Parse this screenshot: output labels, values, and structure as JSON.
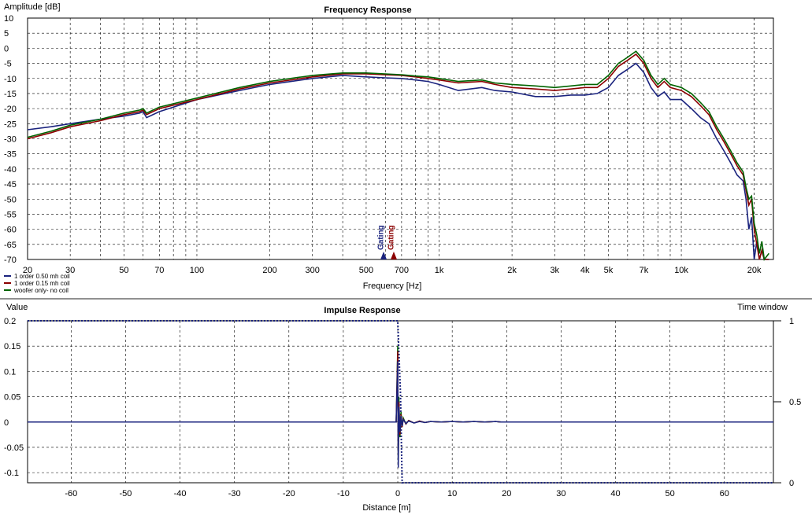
{
  "chart_data": [
    {
      "type": "line",
      "title": "Frequency Response",
      "ylabel": "Amplitude [dB]",
      "xlabel": "Frequency [Hz]",
      "x_scale": "log",
      "xlim": [
        20,
        24000
      ],
      "ylim": [
        -70,
        10
      ],
      "grid": true,
      "legend_placement": "bottom-left",
      "y_ticks": [
        "10",
        "5",
        "0",
        "-5",
        "-10",
        "-15",
        "-20",
        "-25",
        "-30",
        "-35",
        "-40",
        "-45",
        "-50",
        "-55",
        "-60",
        "-65",
        "-70"
      ],
      "x_ticks": [
        {
          "v": 20,
          "label": "20"
        },
        {
          "v": 30,
          "label": "30"
        },
        {
          "v": 50,
          "label": "50"
        },
        {
          "v": 70,
          "label": "70"
        },
        {
          "v": 100,
          "label": "100"
        },
        {
          "v": 200,
          "label": "200"
        },
        {
          "v": 300,
          "label": "300"
        },
        {
          "v": 500,
          "label": "500"
        },
        {
          "v": 700,
          "label": "700"
        },
        {
          "v": 1000,
          "label": "1k"
        },
        {
          "v": 2000,
          "label": "2k"
        },
        {
          "v": 3000,
          "label": "3k"
        },
        {
          "v": 4000,
          "label": "4k"
        },
        {
          "v": 5000,
          "label": "5k"
        },
        {
          "v": 7000,
          "label": "7k"
        },
        {
          "v": 10000,
          "label": "10k"
        },
        {
          "v": 20000,
          "label": "20k"
        }
      ],
      "markers": [
        {
          "label": "Gating",
          "x": 590,
          "color": "#1a237e"
        },
        {
          "label": "Gating",
          "x": 650,
          "color": "#8b0000"
        }
      ],
      "series": [
        {
          "name": "1 order 0.50 mh coil",
          "color": "#1a237e",
          "x": [
            20,
            25,
            30,
            40,
            50,
            58,
            60,
            62,
            70,
            100,
            150,
            200,
            300,
            400,
            500,
            600,
            700,
            800,
            900,
            1000,
            1200,
            1500,
            1700,
            2000,
            2500,
            3000,
            3500,
            4000,
            4500,
            5000,
            5500,
            6000,
            6500,
            7000,
            7500,
            8000,
            8500,
            9000,
            10000,
            11000,
            12000,
            13000,
            14000,
            15000,
            16000,
            17000,
            18000,
            18500,
            19000,
            19500,
            20000,
            20500,
            21000,
            21500,
            22000,
            23000
          ],
          "y": [
            -27,
            -26,
            -25,
            -23.5,
            -22.5,
            -21.5,
            -21,
            -23,
            -21,
            -17,
            -14,
            -12,
            -10,
            -9,
            -9.5,
            -9.8,
            -10,
            -10.5,
            -11,
            -12,
            -14,
            -13,
            -14,
            -14.5,
            -16,
            -16,
            -15.5,
            -15.5,
            -15,
            -13,
            -9,
            -7,
            -5,
            -8,
            -13,
            -16,
            -14.5,
            -17,
            -17,
            -20,
            -23,
            -25,
            -30,
            -34,
            -38,
            -42,
            -44,
            -50,
            -60,
            -56,
            -70,
            -64,
            -70,
            -67,
            -70,
            -70
          ]
        },
        {
          "name": "1 order 0.15 mh coil",
          "color": "#8b0000",
          "x": [
            20,
            25,
            30,
            40,
            50,
            58,
            60,
            62,
            70,
            100,
            150,
            200,
            300,
            400,
            500,
            600,
            700,
            800,
            900,
            1000,
            1200,
            1500,
            1700,
            2000,
            2500,
            3000,
            3500,
            4000,
            4500,
            5000,
            5500,
            6000,
            6500,
            7000,
            7500,
            8000,
            8500,
            9000,
            10000,
            11000,
            12000,
            13000,
            14000,
            15000,
            16000,
            17000,
            18000,
            18500,
            19000,
            19500,
            20000,
            20500,
            21000,
            21500,
            22000,
            23000
          ],
          "y": [
            -30,
            -28,
            -26,
            -24,
            -22,
            -21,
            -20.5,
            -22,
            -20,
            -17,
            -13.5,
            -11.5,
            -9.5,
            -8.5,
            -8.5,
            -8.8,
            -9,
            -9.5,
            -10,
            -10.5,
            -11.5,
            -11,
            -12,
            -13,
            -13.5,
            -14,
            -13.5,
            -13,
            -13,
            -10,
            -6,
            -4,
            -2,
            -5,
            -10,
            -13,
            -11,
            -13,
            -14,
            -16,
            -19,
            -22,
            -27,
            -31,
            -35,
            -39,
            -42,
            -47,
            -52,
            -50,
            -60,
            -65,
            -70,
            -67,
            -70,
            -70
          ]
        },
        {
          "name": "woofer only- no coil",
          "color": "#006400",
          "x": [
            20,
            25,
            30,
            40,
            50,
            58,
            60,
            62,
            70,
            100,
            150,
            200,
            300,
            400,
            500,
            600,
            700,
            800,
            900,
            1000,
            1200,
            1500,
            1700,
            2000,
            2500,
            3000,
            3500,
            4000,
            4500,
            5000,
            5500,
            6000,
            6500,
            7000,
            7500,
            8000,
            8500,
            9000,
            10000,
            11000,
            12000,
            13000,
            14000,
            15000,
            16000,
            17000,
            18000,
            18500,
            19000,
            19500,
            20000,
            20500,
            21000,
            21500,
            22000,
            23000
          ],
          "y": [
            -29.5,
            -27.5,
            -25.5,
            -23.5,
            -21.5,
            -20.5,
            -20,
            -21.5,
            -19.5,
            -16.5,
            -13,
            -11,
            -9,
            -8.2,
            -8.2,
            -8.5,
            -8.8,
            -9.2,
            -9.5,
            -10,
            -11,
            -10.5,
            -11.5,
            -12,
            -12.5,
            -13,
            -12.5,
            -12,
            -12,
            -9,
            -5,
            -3,
            -1,
            -4,
            -9,
            -12,
            -10,
            -12,
            -13,
            -15,
            -18,
            -21,
            -26,
            -30,
            -34,
            -38,
            -41,
            -46,
            -50,
            -49,
            -58,
            -62,
            -68,
            -64,
            -70,
            -68
          ]
        }
      ]
    },
    {
      "type": "line",
      "title": "Impulse Response",
      "ylabel": "Value",
      "y2label": "Time window",
      "xlabel": "Distance [m]",
      "xlim": [
        -68,
        69
      ],
      "ylim": [
        -0.12,
        0.2
      ],
      "y2lim": [
        0,
        1
      ],
      "grid": true,
      "y_ticks": [
        "0.2",
        "0.15",
        "0.1",
        "0.05",
        "0",
        "-0.05",
        "-0.1"
      ],
      "y2_ticks": [
        "1",
        "0.5",
        "0"
      ],
      "x_ticks": [
        "-60",
        "-50",
        "-40",
        "-30",
        "-20",
        "-10",
        "0",
        "10",
        "20",
        "30",
        "40",
        "50",
        "60"
      ],
      "time_window": {
        "x": [
          -68,
          0,
          0.5,
          0.8,
          69
        ],
        "y": [
          1,
          1,
          0.55,
          0,
          0
        ]
      },
      "series": [
        {
          "name": "woofer only- no coil",
          "color": "#006400",
          "x": [
            -68,
            -0.3,
            0,
            0.1,
            0.2,
            0.4,
            0.6,
            0.8,
            1,
            1.5,
            2,
            3,
            4,
            5,
            6,
            8,
            10,
            12,
            14,
            16,
            18,
            19,
            69
          ],
          "y": [
            0,
            0,
            0.15,
            -0.08,
            0.05,
            -0.03,
            0.02,
            -0.01,
            0.008,
            -0.004,
            0.003,
            -0.002,
            0.002,
            -0.001,
            0.001,
            0,
            0.001,
            0,
            0.001,
            0,
            0.001,
            0,
            0
          ]
        },
        {
          "name": "1 order 0.15 mh coil",
          "color": "#8b0000",
          "x": [
            -68,
            -0.3,
            0,
            0.1,
            0.2,
            0.4,
            0.6,
            0.8,
            1,
            1.5,
            2,
            3,
            4,
            5,
            6,
            8,
            10,
            12,
            14,
            16,
            18,
            19,
            69
          ],
          "y": [
            0,
            0,
            0.14,
            -0.07,
            0.04,
            -0.025,
            0.015,
            -0.01,
            0.006,
            -0.004,
            0.003,
            -0.002,
            0.002,
            -0.001,
            0.001,
            0,
            0.001,
            0,
            0.001,
            0,
            0.001,
            0,
            0
          ]
        },
        {
          "name": "1 order 0.50 mh coil",
          "color": "#1a237e",
          "x": [
            -68,
            -0.3,
            0,
            0.1,
            0.2,
            0.4,
            0.6,
            0.8,
            1,
            1.5,
            2,
            3,
            4,
            5,
            6,
            8,
            10,
            12,
            14,
            16,
            18,
            19,
            69
          ],
          "y": [
            0,
            0,
            0.12,
            -0.09,
            0.03,
            -0.02,
            0.012,
            -0.008,
            0.005,
            -0.003,
            0.002,
            -0.002,
            0.001,
            -0.001,
            0.001,
            0,
            0.001,
            0,
            0.001,
            0,
            0.001,
            0,
            0
          ]
        }
      ]
    }
  ]
}
